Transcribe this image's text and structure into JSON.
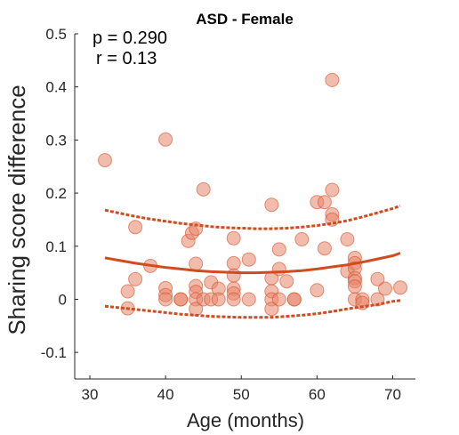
{
  "chart_data": {
    "type": "scatter",
    "title": "ASD - Female",
    "xlabel": "Age (months)",
    "ylabel": "Sharing score difference",
    "xlim": [
      28,
      73
    ],
    "ylim": [
      -0.15,
      0.5
    ],
    "xticks": [
      30,
      40,
      50,
      60,
      70
    ],
    "yticks": [
      -0.1,
      0,
      0.1,
      0.2,
      0.3,
      0.4,
      0.5
    ],
    "ytick_labels": [
      "-0.1",
      "0",
      "0.1",
      "0.2",
      "0.3",
      "0.4",
      "0.5"
    ],
    "annotations": [
      "p = 0.290",
      "r = 0.13"
    ],
    "colors": {
      "marker_fill": "#e8856a",
      "marker_edge": "#d4502a",
      "fit": "#d04c1f",
      "axis": "#262626"
    },
    "points": [
      {
        "x": 32,
        "y": 0.262
      },
      {
        "x": 35,
        "y": 0.015
      },
      {
        "x": 35,
        "y": -0.017
      },
      {
        "x": 36,
        "y": 0.136
      },
      {
        "x": 36,
        "y": 0.038
      },
      {
        "x": 38,
        "y": 0.063
      },
      {
        "x": 40,
        "y": 0.301
      },
      {
        "x": 40,
        "y": 0.021
      },
      {
        "x": 40,
        "y": 0.008
      },
      {
        "x": 40,
        "y": 0.0
      },
      {
        "x": 42,
        "y": 0.0
      },
      {
        "x": 42,
        "y": 0.0
      },
      {
        "x": 43,
        "y": 0.11
      },
      {
        "x": 43.5,
        "y": 0.125
      },
      {
        "x": 44,
        "y": 0.133
      },
      {
        "x": 44,
        "y": 0.067
      },
      {
        "x": 44,
        "y": 0.025
      },
      {
        "x": 44,
        "y": 0.014
      },
      {
        "x": 44,
        "y": 0.0
      },
      {
        "x": 44,
        "y": -0.018
      },
      {
        "x": 45,
        "y": 0.207
      },
      {
        "x": 45,
        "y": 0.0
      },
      {
        "x": 46,
        "y": 0.032
      },
      {
        "x": 46,
        "y": 0.0
      },
      {
        "x": 47,
        "y": 0.02
      },
      {
        "x": 47,
        "y": 0.0
      },
      {
        "x": 49,
        "y": 0.115
      },
      {
        "x": 49,
        "y": 0.068
      },
      {
        "x": 49,
        "y": 0.045
      },
      {
        "x": 49,
        "y": 0.02
      },
      {
        "x": 49,
        "y": 0.011
      },
      {
        "x": 49,
        "y": 0.0
      },
      {
        "x": 51,
        "y": 0.075
      },
      {
        "x": 51,
        "y": 0.0
      },
      {
        "x": 54,
        "y": 0.178
      },
      {
        "x": 54,
        "y": 0.04
      },
      {
        "x": 54,
        "y": 0.015
      },
      {
        "x": 54,
        "y": 0.0
      },
      {
        "x": 54,
        "y": -0.018
      },
      {
        "x": 55,
        "y": 0.094
      },
      {
        "x": 55,
        "y": 0.057
      },
      {
        "x": 55,
        "y": 0.0
      },
      {
        "x": 56,
        "y": 0.034
      },
      {
        "x": 57,
        "y": 0.0
      },
      {
        "x": 57,
        "y": 0.0
      },
      {
        "x": 58,
        "y": 0.113
      },
      {
        "x": 60,
        "y": 0.183
      },
      {
        "x": 60,
        "y": 0.017
      },
      {
        "x": 61,
        "y": 0.183
      },
      {
        "x": 61,
        "y": 0.096
      },
      {
        "x": 62,
        "y": 0.413
      },
      {
        "x": 62,
        "y": 0.206
      },
      {
        "x": 62,
        "y": 0.16
      },
      {
        "x": 62,
        "y": 0.15
      },
      {
        "x": 64,
        "y": 0.113
      },
      {
        "x": 64,
        "y": 0.053
      },
      {
        "x": 65,
        "y": 0.078
      },
      {
        "x": 65,
        "y": 0.068
      },
      {
        "x": 65,
        "y": 0.058
      },
      {
        "x": 65,
        "y": 0.04
      },
      {
        "x": 65,
        "y": 0.034
      },
      {
        "x": 65,
        "y": 0.024
      },
      {
        "x": 65,
        "y": 0.0
      },
      {
        "x": 66,
        "y": 0.0
      },
      {
        "x": 66,
        "y": -0.007
      },
      {
        "x": 68,
        "y": 0.038
      },
      {
        "x": 68,
        "y": 0.0
      },
      {
        "x": 69,
        "y": 0.02
      },
      {
        "x": 71,
        "y": 0.022
      }
    ],
    "fit": {
      "x": [
        32,
        34,
        36,
        38,
        40,
        42,
        44,
        46,
        48,
        50,
        52,
        54,
        56,
        58,
        60,
        62,
        64,
        66,
        68,
        70,
        71
      ],
      "y": [
        0.078,
        0.073,
        0.068,
        0.064,
        0.06,
        0.057,
        0.054,
        0.052,
        0.051,
        0.05,
        0.05,
        0.051,
        0.052,
        0.054,
        0.057,
        0.061,
        0.065,
        0.07,
        0.076,
        0.082,
        0.087
      ]
    },
    "ci_upper": {
      "x": [
        32,
        34,
        36,
        38,
        40,
        42,
        44,
        46,
        48,
        50,
        52,
        54,
        56,
        58,
        60,
        62,
        64,
        66,
        68,
        70,
        71
      ],
      "y": [
        0.168,
        0.162,
        0.156,
        0.151,
        0.147,
        0.143,
        0.14,
        0.137,
        0.135,
        0.134,
        0.133,
        0.133,
        0.134,
        0.136,
        0.139,
        0.143,
        0.148,
        0.155,
        0.163,
        0.171,
        0.176
      ]
    },
    "ci_lower": {
      "x": [
        32,
        34,
        36,
        38,
        40,
        42,
        44,
        46,
        48,
        50,
        52,
        54,
        56,
        58,
        60,
        62,
        64,
        66,
        68,
        70,
        71
      ],
      "y": [
        -0.013,
        -0.016,
        -0.019,
        -0.022,
        -0.025,
        -0.028,
        -0.03,
        -0.032,
        -0.033,
        -0.034,
        -0.034,
        -0.034,
        -0.032,
        -0.03,
        -0.027,
        -0.023,
        -0.018,
        -0.014,
        -0.01,
        -0.004,
        -0.002
      ]
    }
  }
}
